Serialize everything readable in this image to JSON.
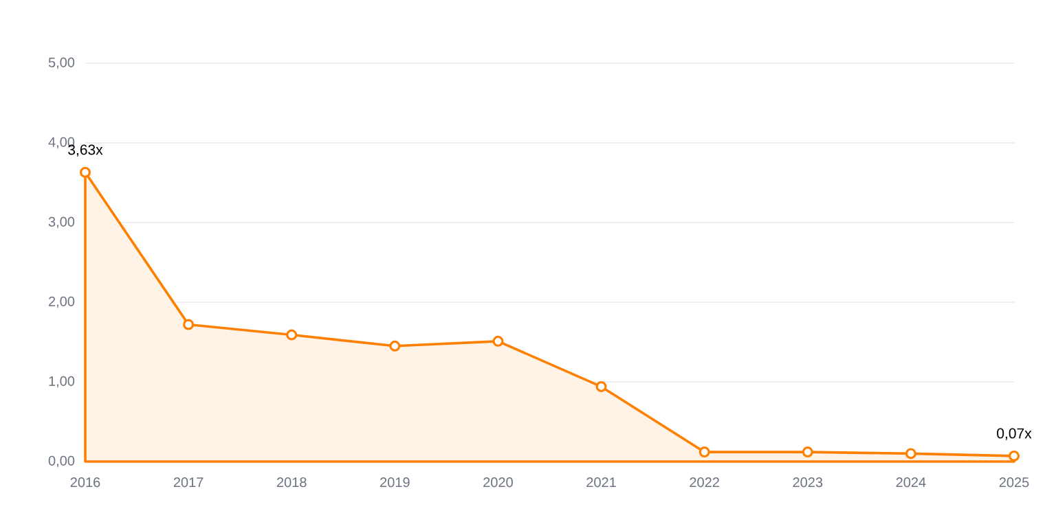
{
  "chart_data": {
    "type": "area",
    "categories": [
      "2016",
      "2017",
      "2018",
      "2019",
      "2020",
      "2021",
      "2022",
      "2023",
      "2024",
      "2025"
    ],
    "values": [
      3.63,
      1.72,
      1.59,
      1.45,
      1.51,
      0.94,
      0.12,
      0.12,
      0.1,
      0.07
    ],
    "value_labels": [
      "3,63x",
      null,
      null,
      null,
      null,
      null,
      null,
      null,
      null,
      "0,07x"
    ],
    "color": "#ff7f00",
    "ylim": [
      0,
      5
    ],
    "yticks": [
      {
        "value": 0,
        "label": "0,00"
      },
      {
        "value": 1,
        "label": "1,00"
      },
      {
        "value": 2,
        "label": "2,00"
      },
      {
        "value": 3,
        "label": "3,00"
      },
      {
        "value": 4,
        "label": "4,00"
      },
      {
        "value": 5,
        "label": "5,00"
      }
    ],
    "grid": "y",
    "marker": "circle"
  }
}
